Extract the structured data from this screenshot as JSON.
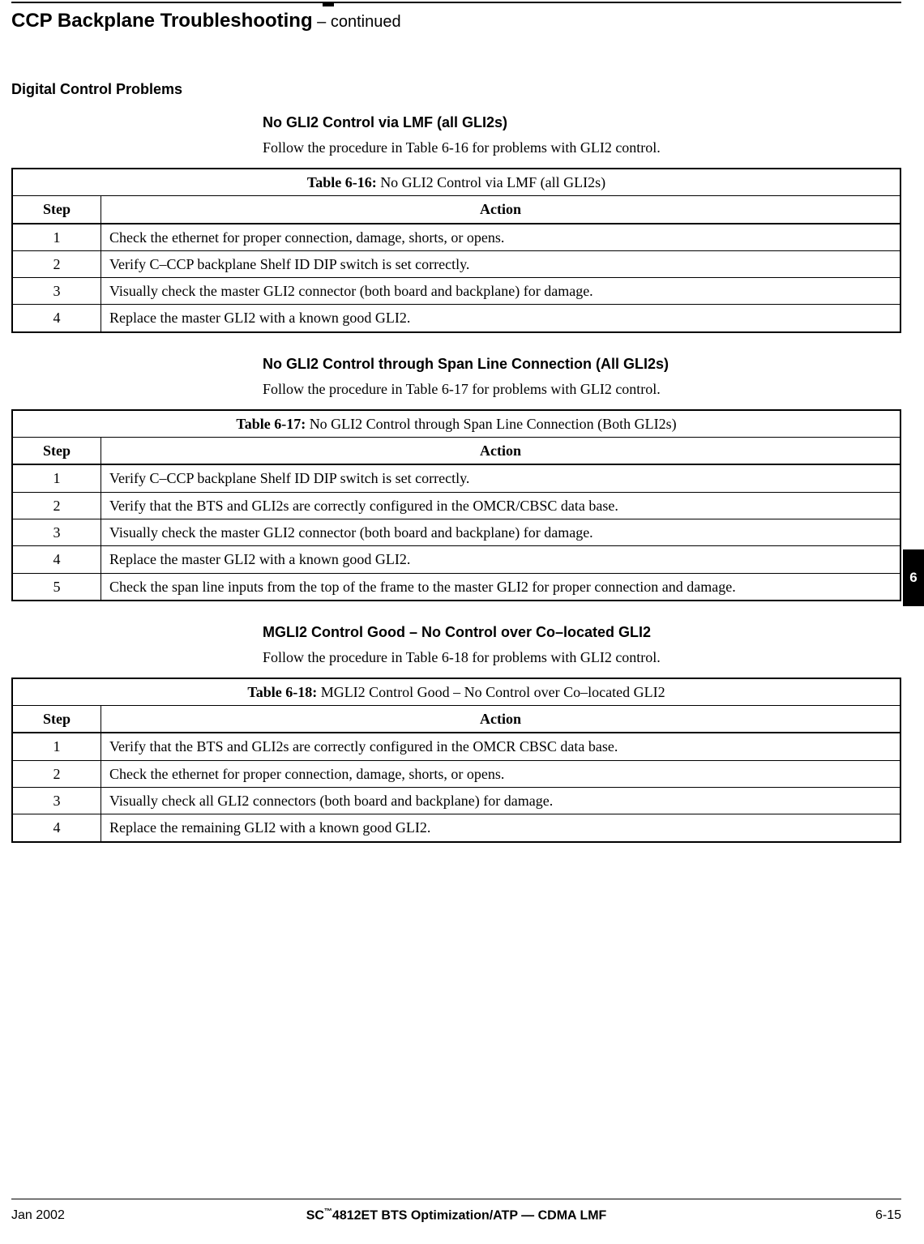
{
  "header": {
    "title": "CCP Backplane Troubleshooting",
    "subtitle": " – continued"
  },
  "section_heading": "Digital Control Problems",
  "sections": [
    {
      "heading": "No GLI2 Control via LMF (all GLI2s)",
      "intro": "Follow the procedure in Table 6-16 for problems with GLI2 control.",
      "table_label": "Table 6-16:",
      "table_title": " No GLI2 Control via LMF (all GLI2s)",
      "col_step": "Step",
      "col_action": "Action",
      "rows": [
        {
          "n": "1",
          "a": "Check the ethernet for proper connection, damage, shorts, or opens."
        },
        {
          "n": "2",
          "a": "Verify C–CCP backplane Shelf ID DIP switch is set correctly."
        },
        {
          "n": "3",
          "a": "Visually check the master GLI2 connector (both board and backplane) for damage."
        },
        {
          "n": "4",
          "a": "Replace the master GLI2 with a known good GLI2."
        }
      ]
    },
    {
      "heading": "No GLI2 Control through Span Line Connection (All GLI2s)",
      "intro": "Follow the procedure in Table 6-17 for problems with GLI2 control.",
      "table_label": "Table 6-17:",
      "table_title": " No GLI2 Control through Span Line Connection (Both GLI2s)",
      "col_step": "Step",
      "col_action": "Action",
      "rows": [
        {
          "n": "1",
          "a": "Verify C–CCP backplane Shelf ID DIP switch is set correctly."
        },
        {
          "n": "2",
          "a": "Verify that the BTS and GLI2s are correctly configured in the OMCR/CBSC data base."
        },
        {
          "n": "3",
          "a": "Visually check the master GLI2 connector (both board and backplane) for damage."
        },
        {
          "n": "4",
          "a": "Replace the master GLI2 with a known good GLI2."
        },
        {
          "n": "5",
          "a": "Check the span line inputs from the top of the frame to the master GLI2 for proper connection and damage."
        }
      ]
    },
    {
      "heading": "MGLI2 Control Good – No Control over Co–located GLI2",
      "intro": "Follow the procedure in Table 6-18 for problems with GLI2 control.",
      "table_label": "Table 6-18:",
      "table_title": " MGLI2 Control Good – No Control over Co–located GLI2",
      "col_step": "Step",
      "col_action": "Action",
      "rows": [
        {
          "n": "1",
          "a": "Verify that the BTS and GLI2s are correctly configured in the OMCR CBSC data base."
        },
        {
          "n": "2",
          "a": "Check the ethernet for proper connection, damage, shorts, or opens."
        },
        {
          "n": "3",
          "a": "Visually check all GLI2 connectors (both board and backplane) for damage."
        },
        {
          "n": "4",
          "a": "Replace the remaining GLI2 with a known good GLI2."
        }
      ]
    }
  ],
  "side_tab": "6",
  "footer": {
    "left": "Jan 2002",
    "center_prefix": "SC",
    "center_tm": "™",
    "center_rest": "4812ET BTS Optimization/ATP — CDMA LMF",
    "right": "6-15"
  }
}
